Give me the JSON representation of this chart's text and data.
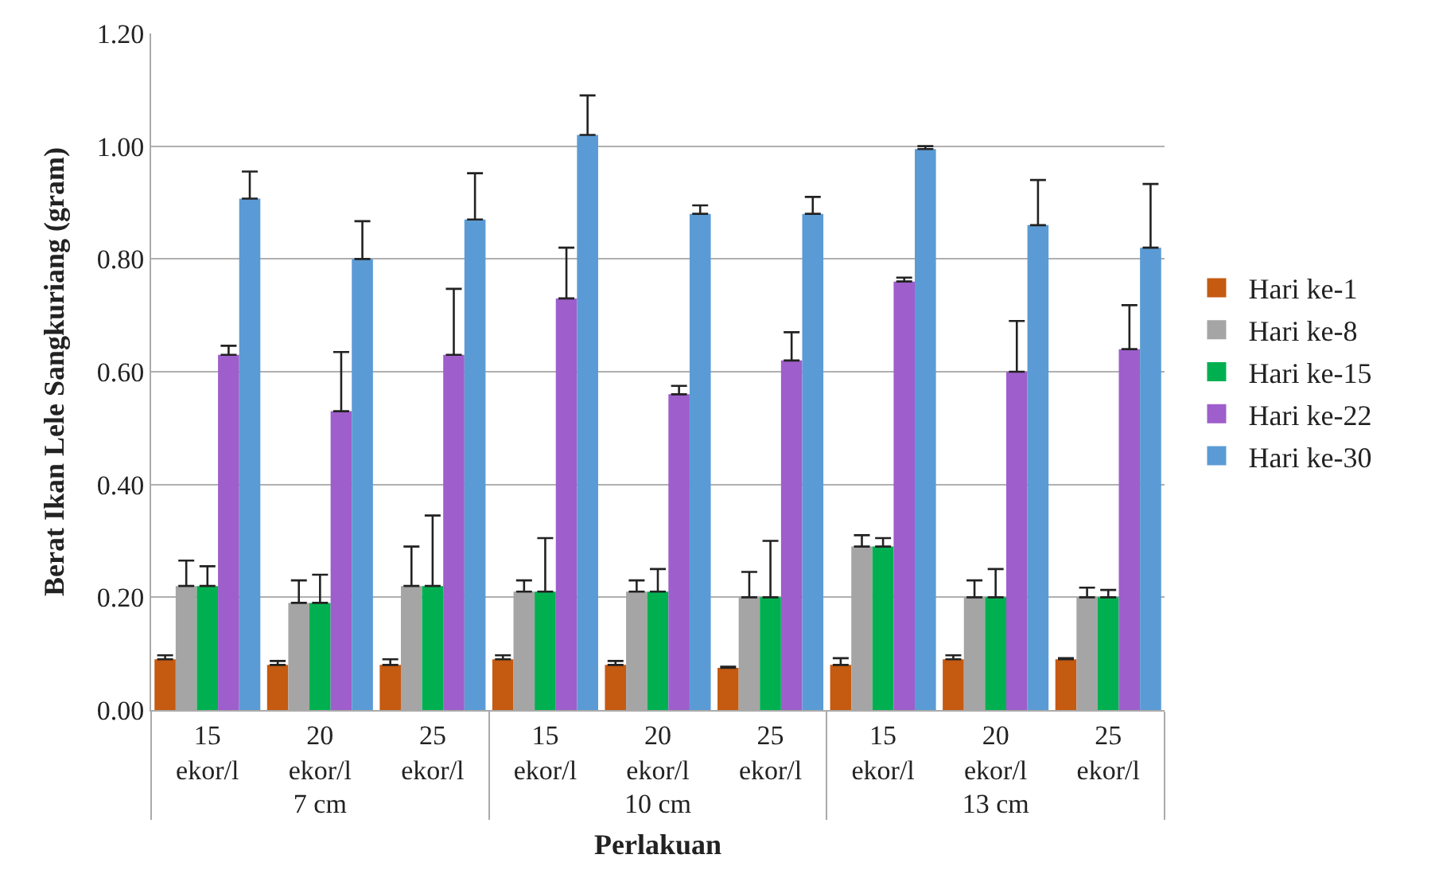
{
  "chart_data": {
    "type": "bar",
    "xlabel": "Perlakuan",
    "ylabel": "Berat Ikan Lele Sangkuriang (gram)",
    "categories": [
      [
        "7 cm",
        "15 ekor/l"
      ],
      [
        null,
        "20 ekor/l"
      ],
      [
        null,
        "25 ekor/l"
      ],
      [
        "10 cm",
        "15 ekor/l"
      ],
      [
        null,
        "20 ekor/l"
      ],
      [
        null,
        "25 ekor/l"
      ],
      [
        "13 cm",
        "15 ekor/l"
      ],
      [
        null,
        "20 ekor/l"
      ],
      [
        null,
        "25 ekor/l"
      ]
    ],
    "series": [
      {
        "name": "Hari ke-1",
        "color": "#c55a11",
        "values": [
          0.09,
          0.08,
          0.08,
          0.09,
          0.08,
          0.075,
          0.08,
          0.09,
          0.09
        ],
        "errors": [
          0.007,
          0.007,
          0.01,
          0.007,
          0.007,
          0.002,
          0.012,
          0.007,
          0.002
        ]
      },
      {
        "name": "Hari ke-8",
        "color": "#a5a5a5",
        "values": [
          0.22,
          0.19,
          0.22,
          0.21,
          0.21,
          0.2,
          0.29,
          0.2,
          0.2
        ],
        "errors": [
          0.045,
          0.04,
          0.07,
          0.02,
          0.02,
          0.045,
          0.02,
          0.03,
          0.017
        ]
      },
      {
        "name": "Hari ke-15",
        "color": "#00b050",
        "values": [
          0.22,
          0.19,
          0.22,
          0.21,
          0.21,
          0.2,
          0.29,
          0.2,
          0.2
        ],
        "errors": [
          0.035,
          0.05,
          0.125,
          0.095,
          0.04,
          0.1,
          0.015,
          0.05,
          0.013
        ]
      },
      {
        "name": "Hari ke-22",
        "color": "#9e5ecb",
        "values": [
          0.63,
          0.53,
          0.63,
          0.73,
          0.56,
          0.62,
          0.76,
          0.6,
          0.64
        ],
        "errors": [
          0.016,
          0.105,
          0.117,
          0.09,
          0.015,
          0.05,
          0.007,
          0.09,
          0.078
        ]
      },
      {
        "name": "Hari ke-30",
        "color": "#5b9bd5",
        "values": [
          0.907,
          0.8,
          0.87,
          1.02,
          0.88,
          0.88,
          0.995,
          0.86,
          0.82
        ],
        "errors": [
          0.048,
          0.067,
          0.082,
          0.07,
          0.015,
          0.03,
          0.005,
          0.08,
          0.113
        ]
      }
    ],
    "ylim": [
      0,
      1.2
    ],
    "yticks": [
      {
        "value": 0,
        "label": "0.00"
      },
      {
        "value": 0.2,
        "label": "0.20"
      },
      {
        "value": 0.4,
        "label": "0.40"
      },
      {
        "value": 0.6,
        "label": "0.60"
      },
      {
        "value": 0.8,
        "label": "0.80"
      },
      {
        "value": 1.0,
        "label": "1.00"
      },
      {
        "value": 1.2,
        "label": "1.20"
      }
    ],
    "grid": "y",
    "legend": "right"
  }
}
